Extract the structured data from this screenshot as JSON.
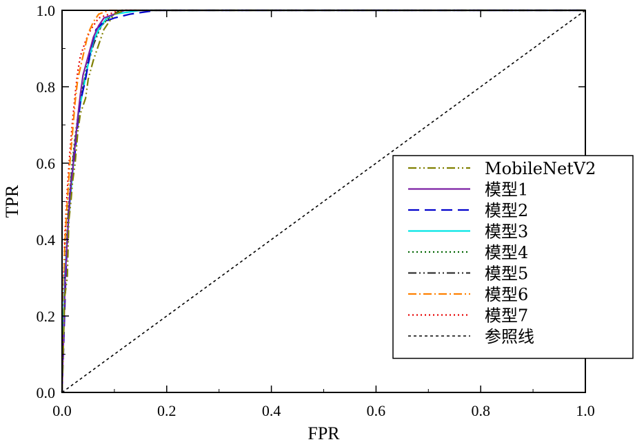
{
  "chart_data": {
    "type": "line",
    "xlabel": "FPR",
    "ylabel": "TPR",
    "xlim": [
      0,
      1
    ],
    "ylim": [
      0,
      1
    ],
    "x_ticks": [
      "0.0",
      "0.2",
      "0.4",
      "0.6",
      "0.8",
      "1.0"
    ],
    "y_ticks": [
      "0.0",
      "0.2",
      "0.4",
      "0.6",
      "0.8",
      "1.0"
    ],
    "grid": false,
    "legend_position": "right",
    "series": [
      {
        "name": "MobileNetV2",
        "color": "#808000",
        "dash": "dash-dot-dot",
        "points": [
          [
            0,
            0
          ],
          [
            0.002,
            0.1
          ],
          [
            0.005,
            0.25
          ],
          [
            0.01,
            0.3
          ],
          [
            0.013,
            0.45
          ],
          [
            0.017,
            0.5
          ],
          [
            0.02,
            0.55
          ],
          [
            0.025,
            0.6
          ],
          [
            0.03,
            0.68
          ],
          [
            0.035,
            0.73
          ],
          [
            0.045,
            0.77
          ],
          [
            0.05,
            0.82
          ],
          [
            0.06,
            0.87
          ],
          [
            0.07,
            0.91
          ],
          [
            0.08,
            0.95
          ],
          [
            0.09,
            0.97
          ],
          [
            0.1,
            0.99
          ],
          [
            0.12,
            1.0
          ],
          [
            1.0,
            1.0
          ]
        ]
      },
      {
        "name": "模型1",
        "color": "#7b1fa2",
        "dash": "solid",
        "points": [
          [
            0,
            0
          ],
          [
            0.003,
            0.15
          ],
          [
            0.006,
            0.3
          ],
          [
            0.01,
            0.4
          ],
          [
            0.015,
            0.52
          ],
          [
            0.02,
            0.58
          ],
          [
            0.025,
            0.65
          ],
          [
            0.03,
            0.72
          ],
          [
            0.035,
            0.78
          ],
          [
            0.04,
            0.83
          ],
          [
            0.05,
            0.88
          ],
          [
            0.06,
            0.93
          ],
          [
            0.07,
            0.96
          ],
          [
            0.08,
            0.98
          ],
          [
            0.1,
            0.99
          ],
          [
            0.12,
            1.0
          ],
          [
            1.0,
            1.0
          ]
        ]
      },
      {
        "name": "模型2",
        "color": "#0000cc",
        "dash": "long-dash",
        "points": [
          [
            0,
            0
          ],
          [
            0.003,
            0.12
          ],
          [
            0.007,
            0.3
          ],
          [
            0.012,
            0.45
          ],
          [
            0.018,
            0.56
          ],
          [
            0.025,
            0.63
          ],
          [
            0.03,
            0.7
          ],
          [
            0.035,
            0.76
          ],
          [
            0.045,
            0.82
          ],
          [
            0.055,
            0.9
          ],
          [
            0.065,
            0.95
          ],
          [
            0.08,
            0.97
          ],
          [
            0.1,
            0.98
          ],
          [
            0.13,
            0.99
          ],
          [
            0.18,
            1.0
          ],
          [
            1.0,
            1.0
          ]
        ]
      },
      {
        "name": "模型3",
        "color": "#00e5e5",
        "dash": "solid",
        "points": [
          [
            0,
            0
          ],
          [
            0.002,
            0.15
          ],
          [
            0.005,
            0.3
          ],
          [
            0.01,
            0.4
          ],
          [
            0.015,
            0.5
          ],
          [
            0.02,
            0.57
          ],
          [
            0.025,
            0.65
          ],
          [
            0.03,
            0.72
          ],
          [
            0.04,
            0.79
          ],
          [
            0.05,
            0.86
          ],
          [
            0.06,
            0.92
          ],
          [
            0.07,
            0.95
          ],
          [
            0.085,
            0.98
          ],
          [
            0.1,
            0.99
          ],
          [
            0.15,
            1.0
          ],
          [
            1.0,
            1.0
          ]
        ]
      },
      {
        "name": "模型4",
        "color": "#006400",
        "dash": "dotted",
        "points": [
          [
            0,
            0
          ],
          [
            0.003,
            0.2
          ],
          [
            0.007,
            0.35
          ],
          [
            0.012,
            0.48
          ],
          [
            0.018,
            0.58
          ],
          [
            0.025,
            0.67
          ],
          [
            0.032,
            0.74
          ],
          [
            0.04,
            0.8
          ],
          [
            0.05,
            0.87
          ],
          [
            0.06,
            0.92
          ],
          [
            0.075,
            0.96
          ],
          [
            0.09,
            0.98
          ],
          [
            0.11,
            1.0
          ],
          [
            1.0,
            1.0
          ]
        ]
      },
      {
        "name": "模型5",
        "color": "#333333",
        "dash": "dash-dot-dot",
        "points": [
          [
            0,
            0
          ],
          [
            0.003,
            0.18
          ],
          [
            0.007,
            0.33
          ],
          [
            0.012,
            0.47
          ],
          [
            0.018,
            0.57
          ],
          [
            0.025,
            0.66
          ],
          [
            0.032,
            0.73
          ],
          [
            0.04,
            0.8
          ],
          [
            0.05,
            0.86
          ],
          [
            0.06,
            0.91
          ],
          [
            0.075,
            0.96
          ],
          [
            0.09,
            0.98
          ],
          [
            0.11,
            1.0
          ],
          [
            1.0,
            1.0
          ]
        ]
      },
      {
        "name": "模型6",
        "color": "#ff8000",
        "dash": "dash-dot",
        "points": [
          [
            0,
            0
          ],
          [
            0.002,
            0.2
          ],
          [
            0.005,
            0.38
          ],
          [
            0.01,
            0.5
          ],
          [
            0.015,
            0.6
          ],
          [
            0.02,
            0.68
          ],
          [
            0.025,
            0.76
          ],
          [
            0.03,
            0.82
          ],
          [
            0.04,
            0.88
          ],
          [
            0.05,
            0.94
          ],
          [
            0.06,
            0.97
          ],
          [
            0.07,
            0.99
          ],
          [
            0.09,
            1.0
          ],
          [
            1.0,
            1.0
          ]
        ]
      },
      {
        "name": "模型7",
        "color": "#e60000",
        "dash": "dotted",
        "points": [
          [
            0,
            0
          ],
          [
            0.002,
            0.22
          ],
          [
            0.005,
            0.4
          ],
          [
            0.01,
            0.53
          ],
          [
            0.015,
            0.63
          ],
          [
            0.02,
            0.71
          ],
          [
            0.025,
            0.78
          ],
          [
            0.03,
            0.84
          ],
          [
            0.035,
            0.88
          ],
          [
            0.045,
            0.92
          ],
          [
            0.055,
            0.95
          ],
          [
            0.07,
            0.98
          ],
          [
            0.09,
            0.99
          ],
          [
            0.11,
            1.0
          ],
          [
            1.0,
            1.0
          ]
        ]
      },
      {
        "name": "参照线",
        "color": "#000000",
        "dash": "short-dash",
        "points": [
          [
            0,
            0
          ],
          [
            1,
            1
          ]
        ]
      }
    ]
  }
}
